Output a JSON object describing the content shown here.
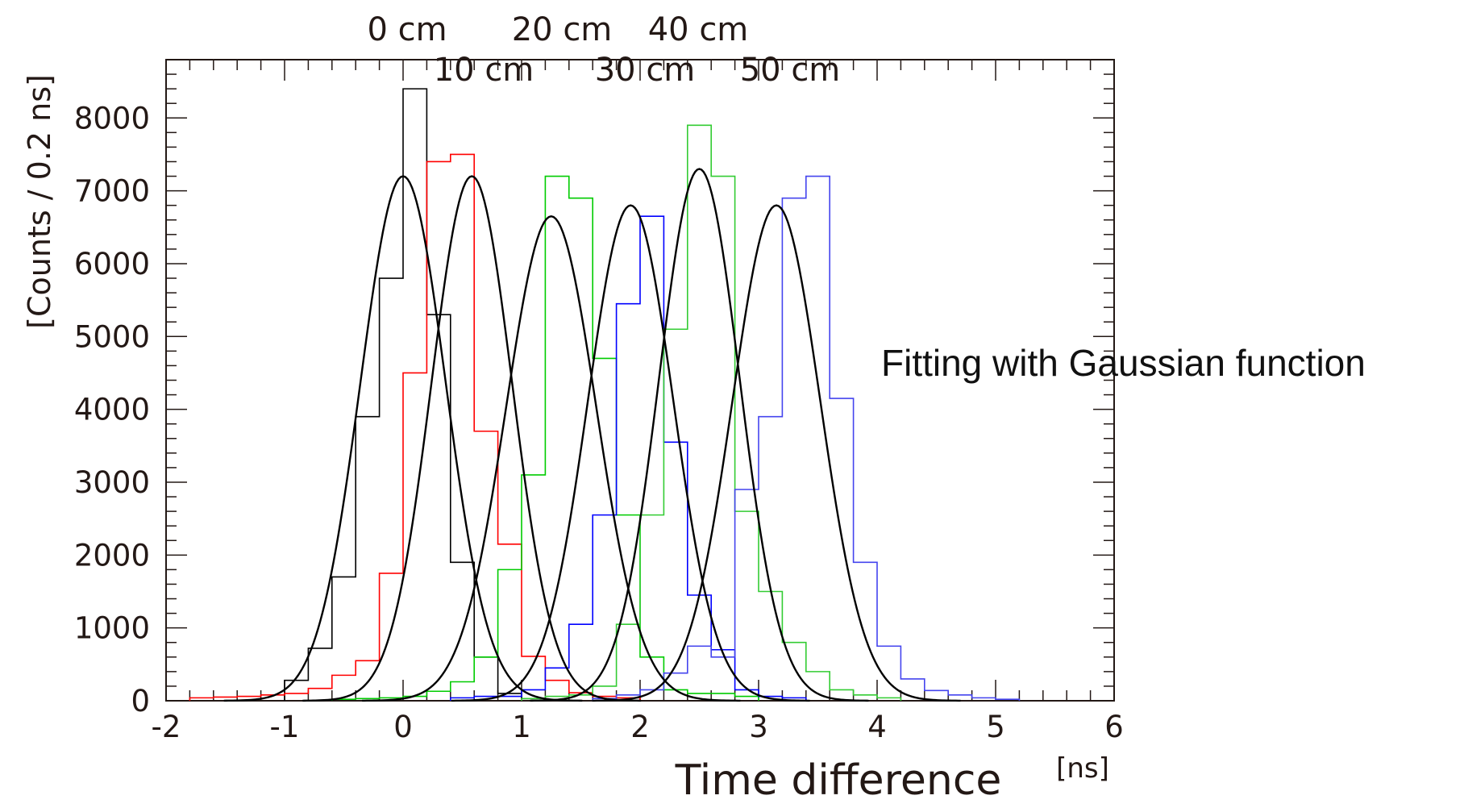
{
  "chart_data": {
    "type": "histogram",
    "title": "",
    "xlabel": "Time difference",
    "xunit": "[ns]",
    "ylabel": "[Counts / 0.2 ns]",
    "xlim": [
      -2,
      6
    ],
    "ylim": [
      0,
      8800
    ],
    "xticks": [
      "-2",
      "-1",
      "0",
      "1",
      "2",
      "3",
      "4",
      "5",
      "6"
    ],
    "xtick_values": [
      -2,
      -1,
      0,
      1,
      2,
      3,
      4,
      5,
      6
    ],
    "yticks": [
      "0",
      "1000",
      "2000",
      "3000",
      "4000",
      "5000",
      "6000",
      "7000",
      "8000"
    ],
    "ytick_values": [
      0,
      1000,
      2000,
      3000,
      4000,
      5000,
      6000,
      7000,
      8000
    ],
    "bin_width": 0.2,
    "grid": false,
    "annotation": "Fitting with Gaussian function",
    "fit_color": "#000000",
    "series": [
      {
        "name": "0 cm",
        "color": "#000000",
        "bin_start": -1.0,
        "counts": [
          280,
          720,
          1700,
          3900,
          5800,
          8400,
          5300,
          1900,
          600,
          100,
          30
        ],
        "fit": {
          "mean": 0.0,
          "sigma": 0.36,
          "amplitude": 7200
        }
      },
      {
        "name": "10 cm",
        "color": "#ff0000",
        "bin_start": -1.8,
        "counts": [
          40,
          50,
          60,
          80,
          100,
          170,
          350,
          550,
          1750,
          4500,
          7400,
          7500,
          3700,
          2150,
          610,
          280,
          110,
          60,
          40
        ],
        "fit": {
          "mean": 0.58,
          "sigma": 0.34,
          "amplitude": 7200
        }
      },
      {
        "name": "20 cm",
        "color": "#00cc00",
        "bin_start": -0.6,
        "counts": [
          20,
          30,
          40,
          60,
          130,
          260,
          600,
          1800,
          3100,
          7200,
          6900,
          4700,
          2550,
          600,
          150,
          100,
          100,
          60
        ],
        "fit": {
          "mean": 1.25,
          "sigma": 0.38,
          "amplitude": 6650
        }
      },
      {
        "name": "30 cm",
        "color": "#0000ff",
        "bin_start": 0.4,
        "counts": [
          40,
          60,
          60,
          150,
          450,
          1050,
          2550,
          5450,
          6650,
          3550,
          1450,
          700,
          150,
          60,
          40
        ],
        "fit": {
          "mean": 1.92,
          "sigma": 0.36,
          "amplitude": 6800
        }
      },
      {
        "name": "40 cm",
        "color": "#33cc33",
        "bin_start": 1.0,
        "counts": [
          30,
          60,
          80,
          200,
          1050,
          2550,
          5100,
          7900,
          7200,
          2600,
          1500,
          800,
          400,
          150,
          80,
          40
        ],
        "fit": {
          "mean": 2.5,
          "sigma": 0.34,
          "amplitude": 7300
        }
      },
      {
        "name": "50 cm",
        "color": "#4444ee",
        "bin_start": 1.6,
        "counts": [
          30,
          80,
          150,
          380,
          750,
          600,
          2900,
          3900,
          6900,
          7200,
          4150,
          1900,
          750,
          300,
          140,
          80,
          40,
          20
        ],
        "fit": {
          "mean": 3.15,
          "sigma": 0.37,
          "amplitude": 6800
        }
      }
    ]
  }
}
